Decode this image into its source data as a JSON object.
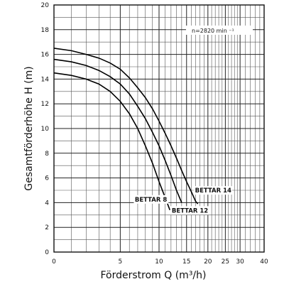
{
  "chart_data": {
    "type": "line",
    "title": "",
    "xlabel": "Förderstrom Q (m³/h)",
    "ylabel": "Gesamtförderhöhe H (m)",
    "x_scale": "log",
    "xlim": [
      0,
      40
    ],
    "ylim": [
      0,
      20
    ],
    "x_ticks": [
      0,
      5,
      10,
      15,
      20,
      25,
      30,
      40
    ],
    "x_tick_labels": [
      "0",
      "5",
      "10",
      "15",
      "20",
      "25",
      "30",
      "40"
    ],
    "y_ticks": [
      0,
      2,
      4,
      6,
      8,
      10,
      12,
      14,
      16,
      18,
      20
    ],
    "y_tick_labels": [
      "0",
      "2",
      "4",
      "6",
      "8",
      "10",
      "12",
      "14",
      "16",
      "18",
      "20"
    ],
    "x_grid": [
      0,
      1,
      2,
      3,
      4,
      5,
      6,
      7,
      8,
      9,
      10,
      11,
      12,
      13,
      14,
      15,
      16,
      17,
      18,
      19,
      20,
      21,
      22,
      23,
      24,
      25,
      26,
      27,
      28,
      29,
      30,
      32,
      34,
      36,
      38,
      40
    ],
    "y_grid": [
      0,
      1,
      2,
      3,
      4,
      5,
      6,
      7,
      8,
      9,
      10,
      11,
      12,
      13,
      14,
      15,
      16,
      17,
      18,
      19,
      20
    ],
    "grid": true,
    "annotation": "n=2820 min ⁻¹",
    "series": [
      {
        "name": "BETTAR 8",
        "points": [
          [
            0,
            14.5
          ],
          [
            1,
            14.3
          ],
          [
            2,
            14.0
          ],
          [
            3,
            13.6
          ],
          [
            4,
            13.0
          ],
          [
            5,
            12.2
          ],
          [
            6,
            11.2
          ],
          [
            7,
            10.0
          ],
          [
            8,
            8.6
          ],
          [
            9,
            7.2
          ],
          [
            10,
            5.7
          ],
          [
            11,
            4.4
          ],
          [
            11.8,
            3.4
          ]
        ]
      },
      {
        "name": "BETTAR 12",
        "points": [
          [
            0,
            15.6
          ],
          [
            1,
            15.4
          ],
          [
            2,
            15.1
          ],
          [
            3,
            14.7
          ],
          [
            4,
            14.2
          ],
          [
            5,
            13.6
          ],
          [
            6,
            12.8
          ],
          [
            7,
            11.8
          ],
          [
            8,
            10.8
          ],
          [
            9,
            9.7
          ],
          [
            10,
            8.6
          ],
          [
            11,
            7.4
          ],
          [
            12,
            6.2
          ],
          [
            13,
            5.0
          ],
          [
            14,
            4.0
          ]
        ]
      },
      {
        "name": "BETTAR 14",
        "points": [
          [
            0,
            16.5
          ],
          [
            1,
            16.3
          ],
          [
            2,
            16.0
          ],
          [
            3,
            15.7
          ],
          [
            4,
            15.3
          ],
          [
            5,
            14.8
          ],
          [
            6,
            14.1
          ],
          [
            7,
            13.3
          ],
          [
            8,
            12.5
          ],
          [
            9,
            11.6
          ],
          [
            10,
            10.6
          ],
          [
            11,
            9.6
          ],
          [
            12,
            8.6
          ],
          [
            13,
            7.6
          ],
          [
            14,
            6.6
          ],
          [
            15,
            5.7
          ],
          [
            16,
            4.9
          ],
          [
            17,
            4.1
          ],
          [
            17.5,
            3.9
          ]
        ]
      }
    ],
    "series_labels": [
      "BETTAR 8",
      "BETTAR 12",
      "BETTAR 14"
    ]
  }
}
